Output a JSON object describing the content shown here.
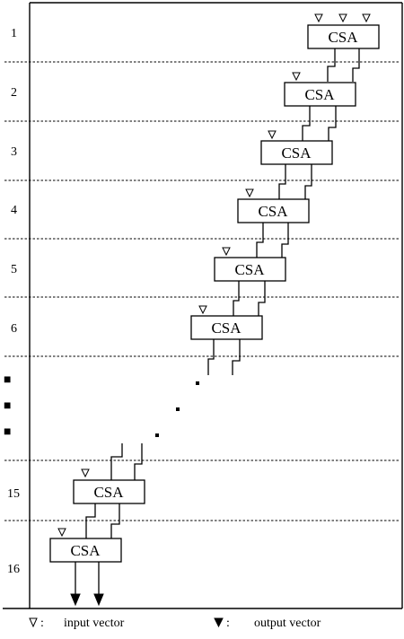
{
  "stage_labels": [
    "1",
    "2",
    "3",
    "4",
    "5",
    "6",
    "15",
    "16"
  ],
  "csa_label": "CSA",
  "vertical_dot": "■",
  "legend": {
    "input_label": "input vector",
    "output_label": "output vector",
    "separator": ":"
  }
}
